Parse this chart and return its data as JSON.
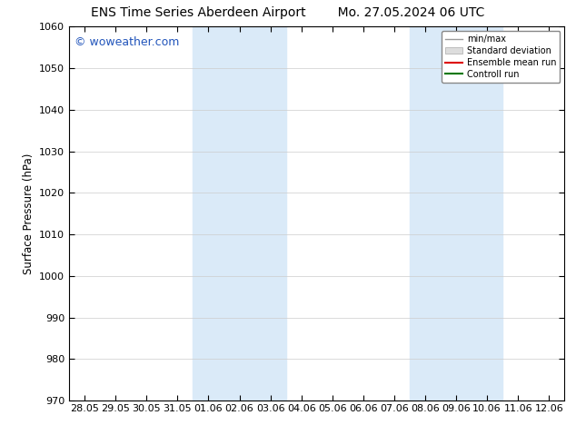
{
  "title_left": "ENS Time Series Aberdeen Airport",
  "title_right": "Mo. 27.05.2024 06 UTC",
  "ylabel": "Surface Pressure (hPa)",
  "ylim": [
    970,
    1060
  ],
  "yticks": [
    970,
    980,
    990,
    1000,
    1010,
    1020,
    1030,
    1040,
    1050,
    1060
  ],
  "xtick_labels": [
    "28.05",
    "29.05",
    "30.05",
    "31.05",
    "01.06",
    "02.06",
    "03.06",
    "04.06",
    "05.06",
    "06.06",
    "07.06",
    "08.06",
    "09.06",
    "10.06",
    "11.06",
    "12.06"
  ],
  "xtick_positions": [
    0,
    1,
    2,
    3,
    4,
    5,
    6,
    7,
    8,
    9,
    10,
    11,
    12,
    13,
    14,
    15
  ],
  "shade_bands": [
    {
      "x_start": 3.5,
      "x_end": 6.5,
      "color": "#daeaf8"
    },
    {
      "x_start": 10.5,
      "x_end": 13.5,
      "color": "#daeaf8"
    }
  ],
  "watermark_text": "© woweather.com",
  "watermark_color": "#2255bb",
  "legend_labels": [
    "min/max",
    "Standard deviation",
    "Ensemble mean run",
    "Controll run"
  ],
  "legend_line_colors": [
    "#999999",
    "#cccccc",
    "#dd0000",
    "#007700"
  ],
  "background_color": "#ffffff",
  "plot_bg_color": "#ffffff",
  "grid_color": "#cccccc",
  "title_fontsize": 10,
  "label_fontsize": 8.5,
  "tick_fontsize": 8,
  "watermark_fontsize": 9
}
